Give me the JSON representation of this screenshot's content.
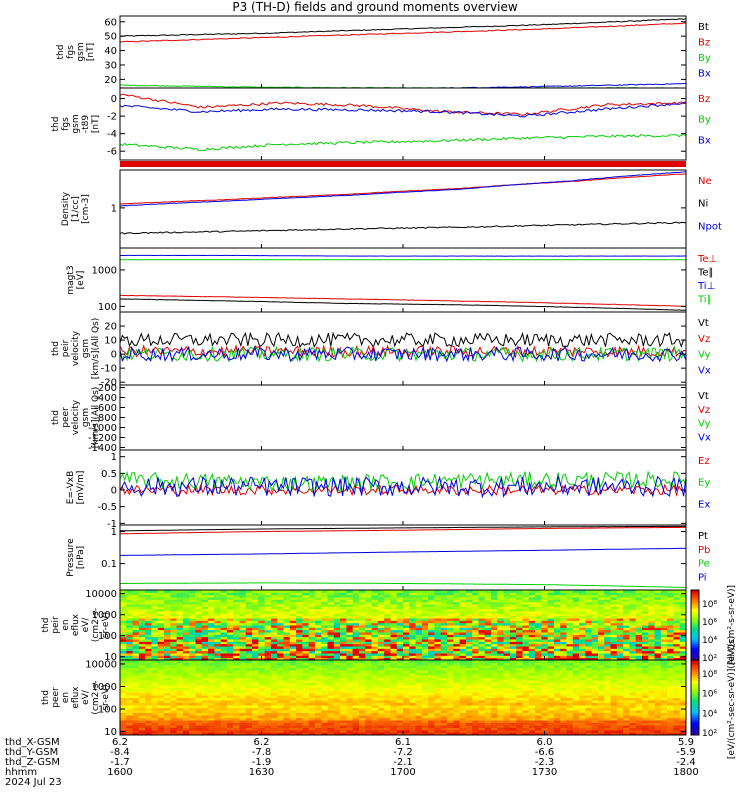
{
  "title": "P3 (TH-D) fields and ground moments overview",
  "colors": {
    "black": "#000000",
    "red": "#e00000",
    "green": "#00d000",
    "blue": "#0000e0"
  },
  "chart_data": [
    {
      "type": "line",
      "id": "fgs",
      "ylabel": [
        "thd",
        "fgs",
        "gsm",
        "[nT]"
      ],
      "ylim": [
        14,
        64
      ],
      "ticks": [
        20,
        30,
        40,
        50,
        60
      ],
      "log": false,
      "series": [
        {
          "name": "Bt",
          "color": "black",
          "values": [
            50,
            52,
            55,
            58,
            62
          ],
          "noise": 0.3
        },
        {
          "name": "Bz",
          "color": "red",
          "values": [
            46,
            49,
            52,
            55,
            59
          ],
          "noise": 0.3
        },
        {
          "name": "By",
          "color": "green",
          "values": [
            16,
            14.5,
            14,
            14,
            14
          ],
          "noise": 0.3
        },
        {
          "name": "Bx",
          "color": "blue",
          "values": [
            14,
            13,
            13.5,
            15,
            17
          ],
          "noise": 0.3
        }
      ]
    },
    {
      "type": "line",
      "id": "fgs_dsl",
      "ylabel": [
        "thd",
        "fgs",
        "gsm",
        "-t89",
        "[nT]"
      ],
      "ylim": [
        -7,
        1.2
      ],
      "ticks": [
        -6,
        -4,
        -2,
        0
      ],
      "log": false,
      "series": [
        {
          "name": "Bz",
          "color": "red",
          "values": [
            0.5,
            -1,
            -0.5,
            -0.8,
            -1.5,
            -1.8,
            -0.7,
            -0.5
          ],
          "noise": 0.15
        },
        {
          "name": "By",
          "color": "green",
          "values": [
            -5.2,
            -5.8,
            -5.2,
            -5,
            -4.8,
            -4.5,
            -4.3,
            -4.2
          ],
          "noise": 0.15
        },
        {
          "name": "Bx",
          "color": "blue",
          "values": [
            -0.8,
            -1.5,
            -1.2,
            -1.3,
            -1.5,
            -2,
            -1.2,
            -0.5
          ],
          "noise": 0.15
        }
      ]
    },
    {
      "type": "line",
      "id": "density",
      "ylabel": [
        "Density",
        "[1/cc]",
        "[cm-3]"
      ],
      "ylim": [
        0.15,
        6
      ],
      "ticks": [
        1
      ],
      "log": true,
      "series": [
        {
          "name": "Ne",
          "color": "red",
          "values": [
            1.2,
            1.5,
            1.9,
            2.5,
            3.5,
            5
          ],
          "noise": 0.01
        },
        {
          "name": "Ni",
          "color": "black",
          "values": [
            0.3,
            0.33,
            0.37,
            0.4,
            0.45,
            0.5
          ],
          "noise": 0.03
        },
        {
          "name": "Npot",
          "color": "blue",
          "values": [
            1.1,
            1.4,
            1.8,
            2.4,
            3.6,
            5.5
          ],
          "noise": 0.01
        }
      ]
    },
    {
      "type": "line",
      "id": "temp",
      "ylabel": [
        "magt3",
        "[eV]"
      ],
      "ylim": [
        70,
        4000
      ],
      "ticks": [
        100,
        1000
      ],
      "log": true,
      "series": [
        {
          "name": "Te⊥",
          "color": "red",
          "values": [
            200,
            180,
            160,
            140,
            120,
            100
          ],
          "noise": 0.01
        },
        {
          "name": "Te∥",
          "color": "black",
          "values": [
            160,
            140,
            120,
            110,
            95,
            78
          ],
          "noise": 0.01
        },
        {
          "name": "Ti⊥",
          "color": "blue",
          "values": [
            2500,
            2500,
            2400,
            2400,
            2400,
            2400
          ],
          "noise": 0.005
        },
        {
          "name": "Ti∥",
          "color": "green",
          "values": [
            1900,
            1900,
            1900,
            1900,
            1900,
            1900
          ],
          "noise": 0.005
        }
      ]
    },
    {
      "type": "line",
      "id": "peir_v",
      "ylabel": [
        "thd",
        "peir",
        "velocity",
        "gsm",
        "[km/s](All Qs)"
      ],
      "ylim": [
        -22,
        30
      ],
      "ticks": [
        -20,
        -10,
        0,
        10,
        20
      ],
      "log": false,
      "series": [
        {
          "name": "Vt",
          "color": "black",
          "values": [
            10,
            10,
            10,
            10,
            10
          ],
          "noise": 5
        },
        {
          "name": "Vz",
          "color": "red",
          "values": [
            2,
            2,
            2,
            2,
            2
          ],
          "noise": 4
        },
        {
          "name": "Vy",
          "color": "green",
          "values": [
            0,
            0,
            0,
            0,
            0
          ],
          "noise": 5
        },
        {
          "name": "Vx",
          "color": "blue",
          "values": [
            0,
            0,
            0,
            0,
            0
          ],
          "noise": 5
        }
      ]
    },
    {
      "type": "line",
      "id": "peer_v",
      "ylabel": [
        "thd",
        "peer",
        "velocity",
        "gsm",
        "[km/s](All Qs)"
      ],
      "ylim": [
        -1450,
        -150
      ],
      "ticks": [
        -1400,
        -1200,
        -1000,
        -800,
        -600,
        -400,
        -200
      ],
      "log": false,
      "series": [
        {
          "name": "Vt",
          "color": "black",
          "values": [],
          "noise": 0
        },
        {
          "name": "Vz",
          "color": "red",
          "values": [],
          "noise": 0
        },
        {
          "name": "Vy",
          "color": "green",
          "values": [],
          "noise": 0
        },
        {
          "name": "Vx",
          "color": "blue",
          "values": [],
          "noise": 0
        }
      ]
    },
    {
      "type": "line",
      "id": "efield",
      "ylabel": [
        "E=-VxB",
        "[mV/m]"
      ],
      "ylim": [
        -1.05,
        1.2
      ],
      "ticks": [
        -1,
        -0.5,
        0,
        0.5,
        1
      ],
      "log": false,
      "series": [
        {
          "name": "Ez",
          "color": "red",
          "values": [
            0,
            0,
            0,
            0
          ],
          "noise": 0.15
        },
        {
          "name": "Ey",
          "color": "green",
          "values": [
            0.3,
            0.2,
            0.3,
            0.3
          ],
          "noise": 0.25
        },
        {
          "name": "Ex",
          "color": "blue",
          "values": [
            0.1,
            0.1,
            0.1,
            0.1
          ],
          "noise": 0.3
        }
      ]
    },
    {
      "type": "line",
      "id": "pressure",
      "ylabel": [
        "Pressure",
        "[nPa]"
      ],
      "ylim": [
        0.015,
        1.6
      ],
      "ticks": [
        0.1,
        1
      ],
      "log": true,
      "series": [
        {
          "name": "Pt",
          "color": "black",
          "values": [
            1.05,
            1.2,
            1.3,
            1.4,
            1.45
          ],
          "noise": 0.003
        },
        {
          "name": "Pb",
          "color": "red",
          "values": [
            0.85,
            1,
            1.1,
            1.25,
            1.35
          ],
          "noise": 0.003
        },
        {
          "name": "Pe",
          "color": "green",
          "values": [
            0.024,
            0.025,
            0.024,
            0.022,
            0.018
          ],
          "noise": 0.003
        },
        {
          "name": "Pi",
          "color": "blue",
          "values": [
            0.18,
            0.2,
            0.23,
            0.26,
            0.3
          ],
          "noise": 0.003
        }
      ]
    },
    {
      "type": "heatmap",
      "id": "peir_en",
      "ylabel": [
        "thd",
        "peir",
        "en",
        "eflux",
        "eV/",
        "(cm2-s-",
        "sr-eV)"
      ],
      "ylim": [
        7,
        15000
      ],
      "ticks": [
        10,
        100,
        1000,
        10000
      ],
      "log": true
    },
    {
      "type": "heatmap",
      "id": "peer_en",
      "ylabel": [
        "thd",
        "peer",
        "en",
        "eflux",
        "eV/",
        "(cm2-s-",
        "sr-eV)"
      ],
      "ylim": [
        7,
        15000
      ],
      "ticks": [
        10,
        100,
        1000,
        10000
      ],
      "log": true
    }
  ],
  "colorbars": [
    {
      "ticks": [
        "10⁸",
        "10⁶",
        "10⁴",
        "10²"
      ],
      "label": "[eV/(cm²-s-sr-eV)]"
    },
    {
      "ticks": [
        "10⁸",
        "10⁶",
        "10⁴",
        "10²"
      ],
      "label": "[eV/(cm²-sec-sr-eV)](All Qs)"
    }
  ],
  "ephemeris": {
    "labels": [
      "thd_X-GSM",
      "thd_Y-GSM",
      "thd_Z-GSM",
      "hhmm",
      "2024 Jul 23"
    ],
    "columns": [
      [
        "6.2",
        "-8.4",
        "-1.7",
        "1600"
      ],
      [
        "6.2",
        "-7.8",
        "-1.9",
        "1630"
      ],
      [
        "6.1",
        "-7.2",
        "-2.1",
        "1700"
      ],
      [
        "6.0",
        "-6.6",
        "-2.3",
        "1730"
      ],
      [
        "5.9",
        "-5.9",
        "-2.4",
        "1800"
      ]
    ]
  }
}
